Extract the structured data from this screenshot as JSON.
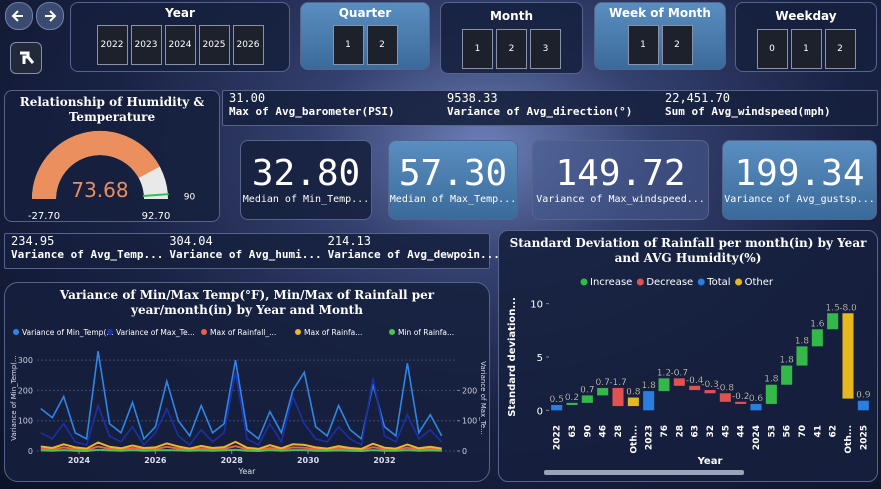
{
  "slicers": [
    {
      "title": "Year",
      "items": [
        "2022",
        "2023",
        "2024",
        "2025",
        "2026"
      ]
    },
    {
      "title": "Quarter",
      "items": [
        "1",
        "2"
      ]
    },
    {
      "title": "Month",
      "items": [
        "1",
        "2",
        "3"
      ]
    },
    {
      "title": "Week of Month",
      "items": [
        "1",
        "2"
      ]
    },
    {
      "title": "Weekday",
      "items": [
        "0",
        "1",
        "2"
      ]
    }
  ],
  "cards_top": [
    {
      "value": "31.00",
      "label": "Max of Avg_barometer(PSI)"
    },
    {
      "value": "9538.33",
      "label": "Variance of Avg_direction(°)"
    },
    {
      "value": "22,451.70",
      "label": "Sum of Avg_windspeed(mph)"
    }
  ],
  "cards_big": [
    {
      "value": "32.80",
      "label": "Median of Min_Temp..."
    },
    {
      "value": "57.30",
      "label": "Median of Max_Temp..."
    },
    {
      "value": "149.72",
      "label": "Variance of Max_windspeed..."
    },
    {
      "value": "199.34",
      "label": "Variance of Avg_gustsp..."
    }
  ],
  "cards_mid": [
    {
      "value": "234.95",
      "label": "Variance of Avg_Temp..."
    },
    {
      "value": "304.04",
      "label": "Variance of Avg_humi..."
    },
    {
      "value": "214.13",
      "label": "Variance of Avg_dewpoin..."
    }
  ],
  "chart_data": [
    {
      "type": "gauge",
      "title": "Relationship of Humidity & Temperature",
      "value": 73.68,
      "target": 90,
      "range": [
        {
          "value": -27.7,
          "label": "-27.70"
        },
        {
          "value": 92.7,
          "label": "92.70"
        }
      ],
      "color": "#ec8f5e",
      "track_color": "#e9e9e9",
      "target_color": "#2fbf58"
    },
    {
      "type": "line",
      "title": "Variance of Min/Max Temp(°F), Min/Max of Rainfall per year/month(in) by Year and Month",
      "x_label": "Year",
      "y_label": "Variance of Min_Temp(...",
      "y2_label": "Variance of Max_Te...",
      "x": [
        2023,
        2023.3,
        2023.6,
        2023.9,
        2024.2,
        2024.5,
        2024.8,
        2025.1,
        2025.4,
        2025.7,
        2026,
        2026.3,
        2026.6,
        2026.9,
        2027.2,
        2027.5,
        2027.8,
        2028.1,
        2028.4,
        2028.7,
        2029,
        2029.3,
        2029.6,
        2029.9,
        2030.2,
        2030.5,
        2030.8,
        2031.1,
        2031.4,
        2031.7,
        2032,
        2032.3,
        2032.6,
        2032.9,
        2033.2,
        2033.5
      ],
      "xlim": [
        2022.9,
        2033.9
      ],
      "xticks": [
        2024,
        2026,
        2028,
        2030,
        2032
      ],
      "ylim": [
        0,
        350
      ],
      "yticks": [
        0,
        100,
        200,
        300
      ],
      "y2lim": [
        0,
        350
      ],
      "y2ticks": [
        0,
        100,
        200
      ],
      "series": [
        {
          "name": "Variance of Min_Temp(...",
          "color": "#2f86e8",
          "values": [
            140,
            110,
            180,
            60,
            40,
            330,
            90,
            60,
            160,
            40,
            80,
            230,
            100,
            50,
            150,
            60,
            90,
            300,
            70,
            40,
            130,
            60,
            200,
            260,
            80,
            50,
            150,
            70,
            40,
            220,
            80,
            50,
            290,
            60,
            120,
            50
          ]
        },
        {
          "name": "Variance of Max_Te...",
          "color": "#1d2fa8",
          "values": [
            60,
            40,
            90,
            30,
            20,
            150,
            50,
            30,
            80,
            20,
            60,
            140,
            50,
            20,
            70,
            30,
            60,
            260,
            40,
            20,
            90,
            30,
            180,
            90,
            40,
            30,
            80,
            40,
            20,
            240,
            50,
            30,
            120,
            40,
            70,
            30
          ]
        },
        {
          "name": "Max of Rainfall_...",
          "color": "#e8604c",
          "axis": "y2",
          "values": [
            8,
            5,
            12,
            6,
            3,
            15,
            7,
            4,
            10,
            5,
            6,
            14,
            8,
            4,
            9,
            5,
            7,
            16,
            6,
            3,
            10,
            5,
            12,
            11,
            6,
            4,
            9,
            5,
            3,
            13,
            6,
            4,
            11,
            5,
            8,
            4
          ]
        },
        {
          "name": "Max of Rainfa...",
          "color": "#f0b429",
          "axis": "y2",
          "values": [
            15,
            10,
            22,
            12,
            8,
            28,
            14,
            9,
            18,
            10,
            12,
            25,
            15,
            8,
            17,
            10,
            13,
            30,
            11,
            7,
            19,
            9,
            22,
            20,
            12,
            8,
            16,
            10,
            7,
            24,
            11,
            8,
            21,
            9,
            14,
            8
          ]
        },
        {
          "name": "Min of Rainfa...",
          "color": "#4cc34f",
          "axis": "y2",
          "values": [
            2,
            1,
            3,
            1,
            0,
            4,
            2,
            1,
            3,
            1,
            2,
            3,
            2,
            1,
            2,
            1,
            2,
            4,
            1,
            0,
            3,
            1,
            3,
            3,
            1,
            1,
            2,
            1,
            0,
            3,
            1,
            1,
            3,
            1,
            2,
            1
          ]
        }
      ]
    },
    {
      "type": "waterfall",
      "title": "Standard Deviation of Rainfall per month(in) by Year and AVG Humidity(%)",
      "x_label": "Year",
      "y_label": "Standard deviation...",
      "legend": [
        {
          "name": "Increase",
          "color": "#35b84a"
        },
        {
          "name": "Decrease",
          "color": "#e05252"
        },
        {
          "name": "Total",
          "color": "#2a7de1"
        },
        {
          "name": "Other",
          "color": "#e6b820"
        }
      ],
      "categories": [
        "2022",
        "63",
        "90",
        "46",
        "28",
        "Oth...",
        "2023",
        "76",
        "28",
        "63",
        "32",
        "45",
        "44",
        "2024",
        "53",
        "56",
        "70",
        "41",
        "62",
        "Oth...",
        "2025"
      ],
      "values": [
        0.5,
        0.2,
        0.7,
        0.7,
        -1.7,
        0.8,
        1.8,
        1.2,
        -0.7,
        -0.4,
        -0.3,
        -0.8,
        -0.2,
        0.6,
        1.8,
        1.8,
        1.8,
        1.6,
        1.5,
        -8,
        0.9
      ],
      "value_labels": [
        "0.5",
        "0.2",
        "0.7",
        "0.7",
        "-1.7",
        "0.8",
        "1.8",
        "1.2",
        "-0.7",
        "-0.4",
        "-0.3",
        "-0.8",
        "-0.2",
        "0.6",
        "1.8",
        "1.8",
        "1.8",
        "1.6",
        "1.5",
        "-8.0",
        "0.9"
      ],
      "ylim": [
        -1,
        11
      ],
      "yticks": [
        0,
        5,
        10
      ]
    }
  ]
}
